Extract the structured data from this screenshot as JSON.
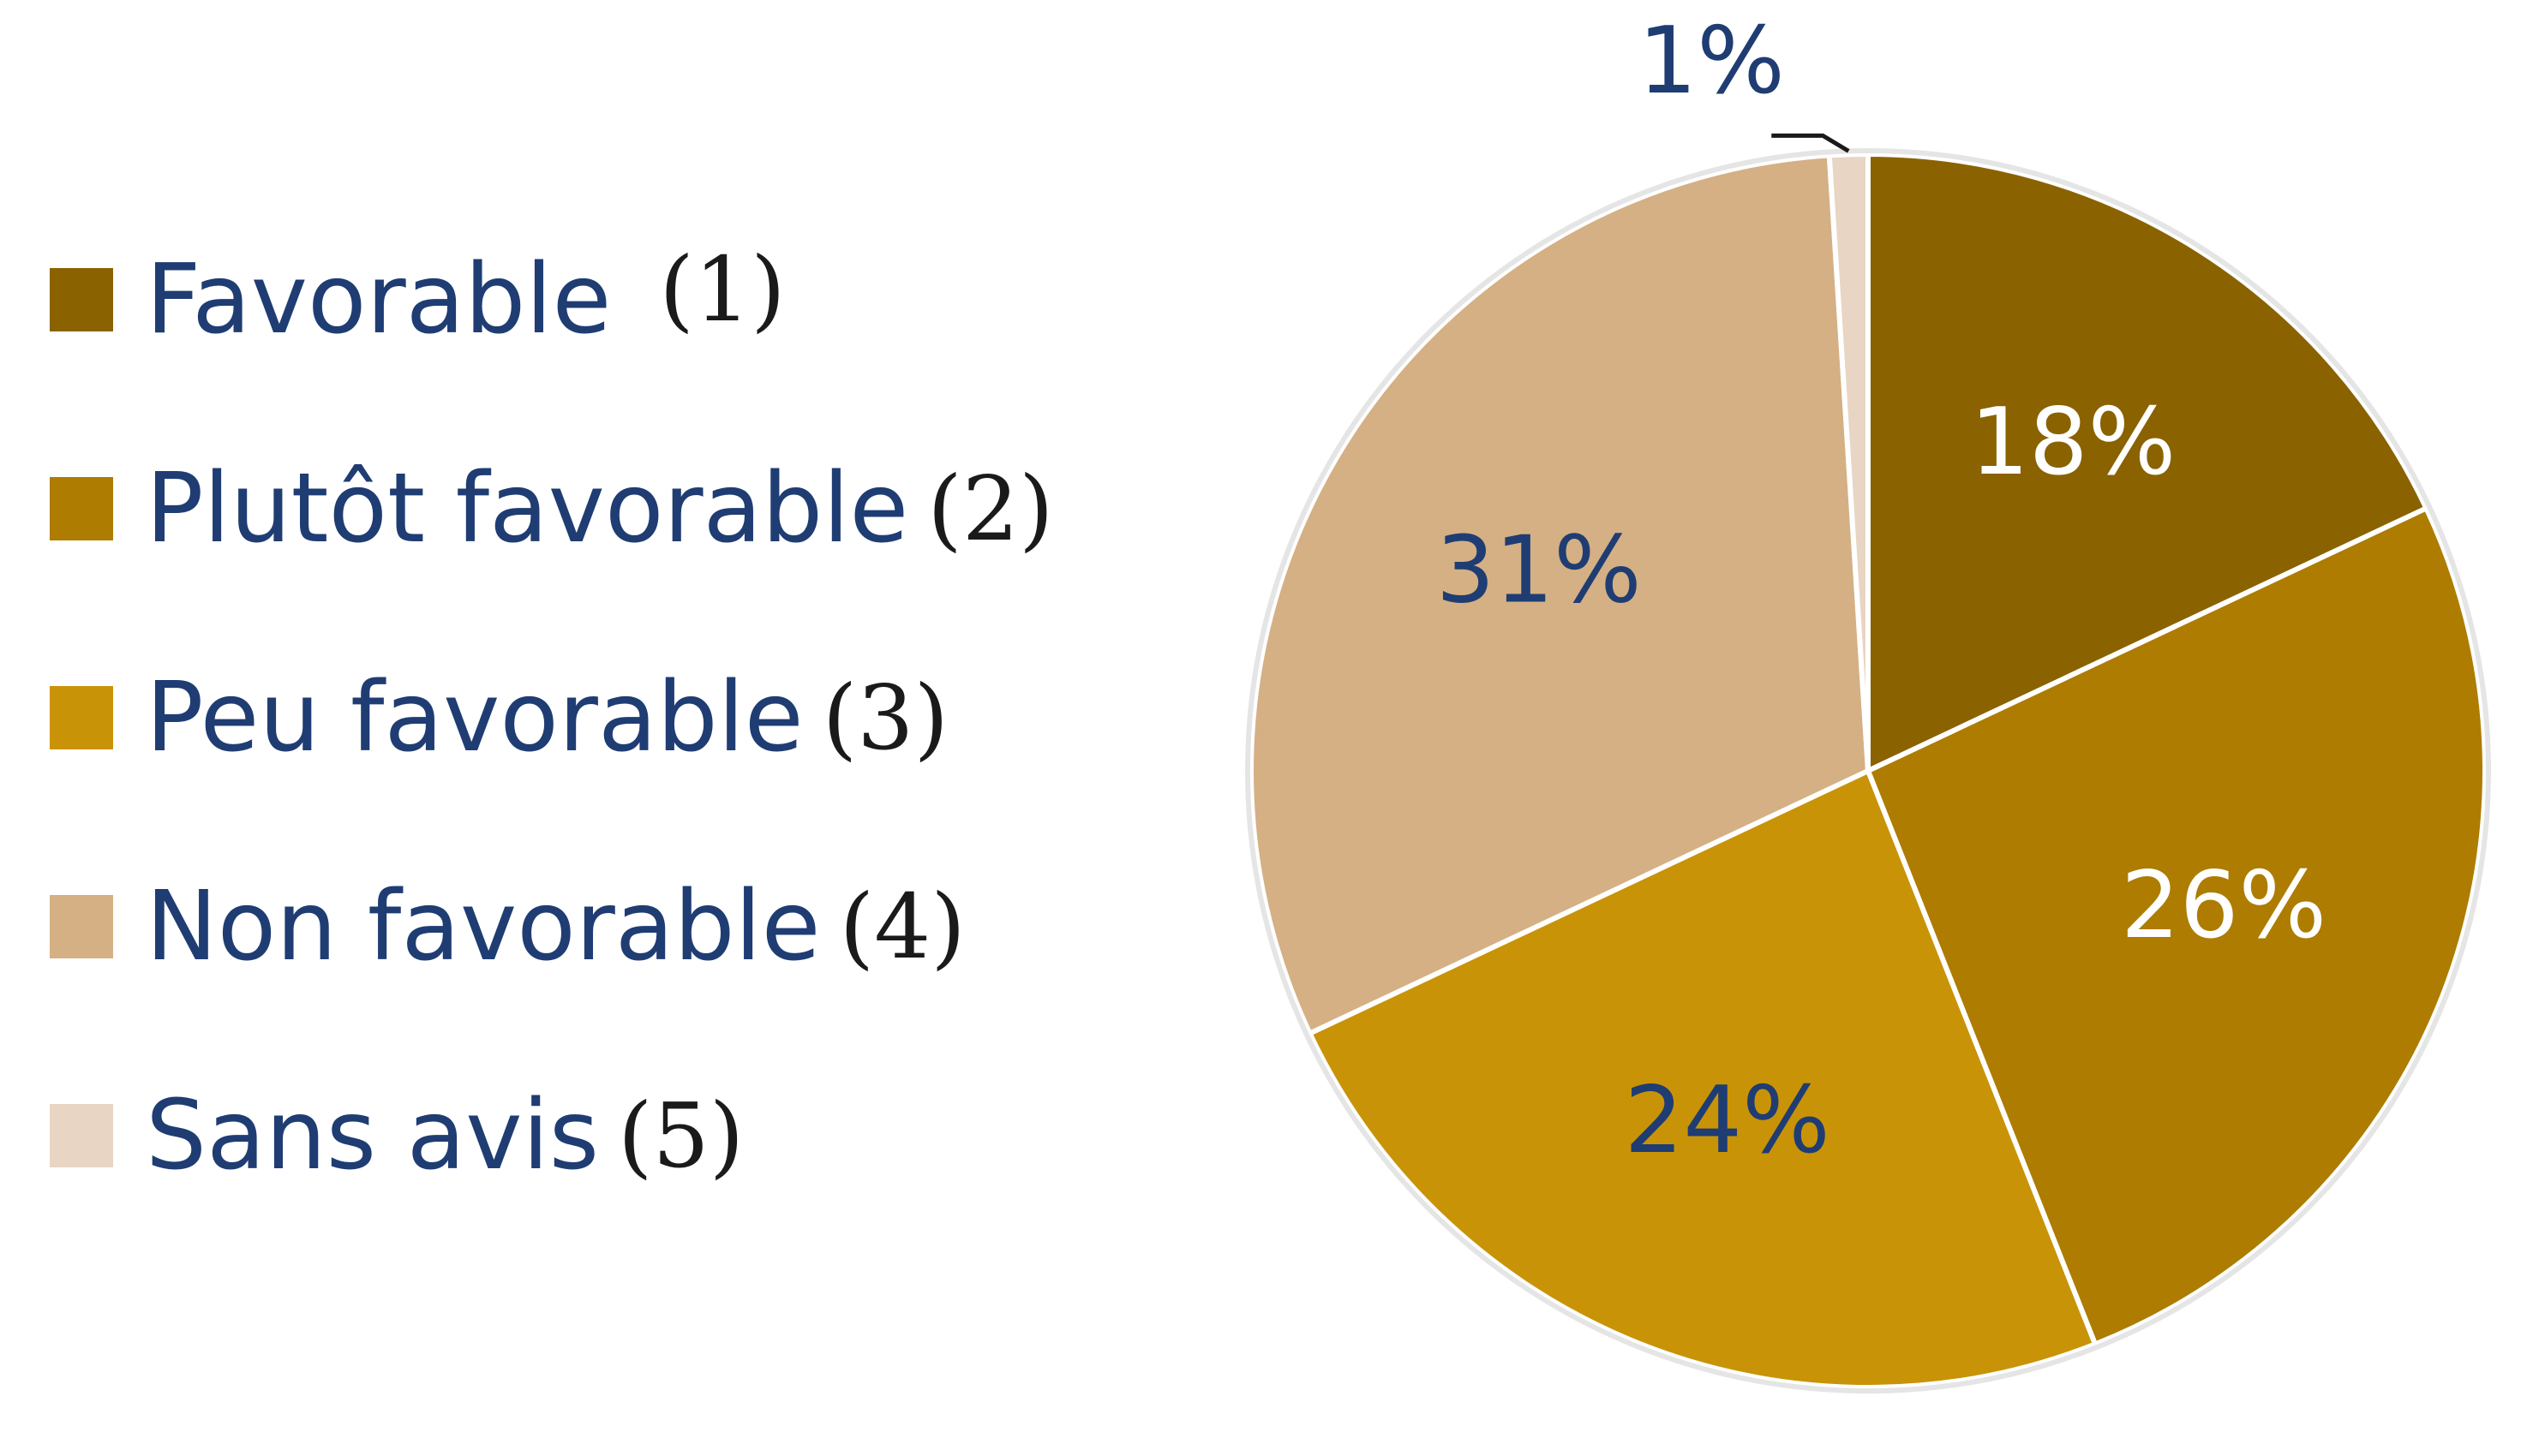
{
  "chart_data": {
    "type": "pie",
    "slices": [
      {
        "label": "Favorable",
        "number": "(1)",
        "value": 18,
        "display": "18%",
        "color": "#8a6200",
        "text_color": "#ffffff"
      },
      {
        "label": "Plutôt favorable",
        "number": "(2)",
        "value": 26,
        "display": "26%",
        "color": "#ad7c00",
        "text_color": "#ffffff"
      },
      {
        "label": "Peu favorable",
        "number": "(3)",
        "value": 24,
        "display": "24%",
        "color": "#c99308",
        "text_color": "#1f3d73"
      },
      {
        "label": "Non favorable",
        "number": "(4)",
        "value": 31,
        "display": "31%",
        "color": "#d4b084",
        "text_color": "#1f3d73"
      },
      {
        "label": "Sans avis",
        "number": "(5)",
        "value": 1,
        "display": "1%",
        "color": "#e8d5c4",
        "text_color": "#1f3d73"
      }
    ],
    "start_angle_deg": 0,
    "direction": "clockwise",
    "legend_position": "left",
    "label_color": "#1f3d73"
  }
}
